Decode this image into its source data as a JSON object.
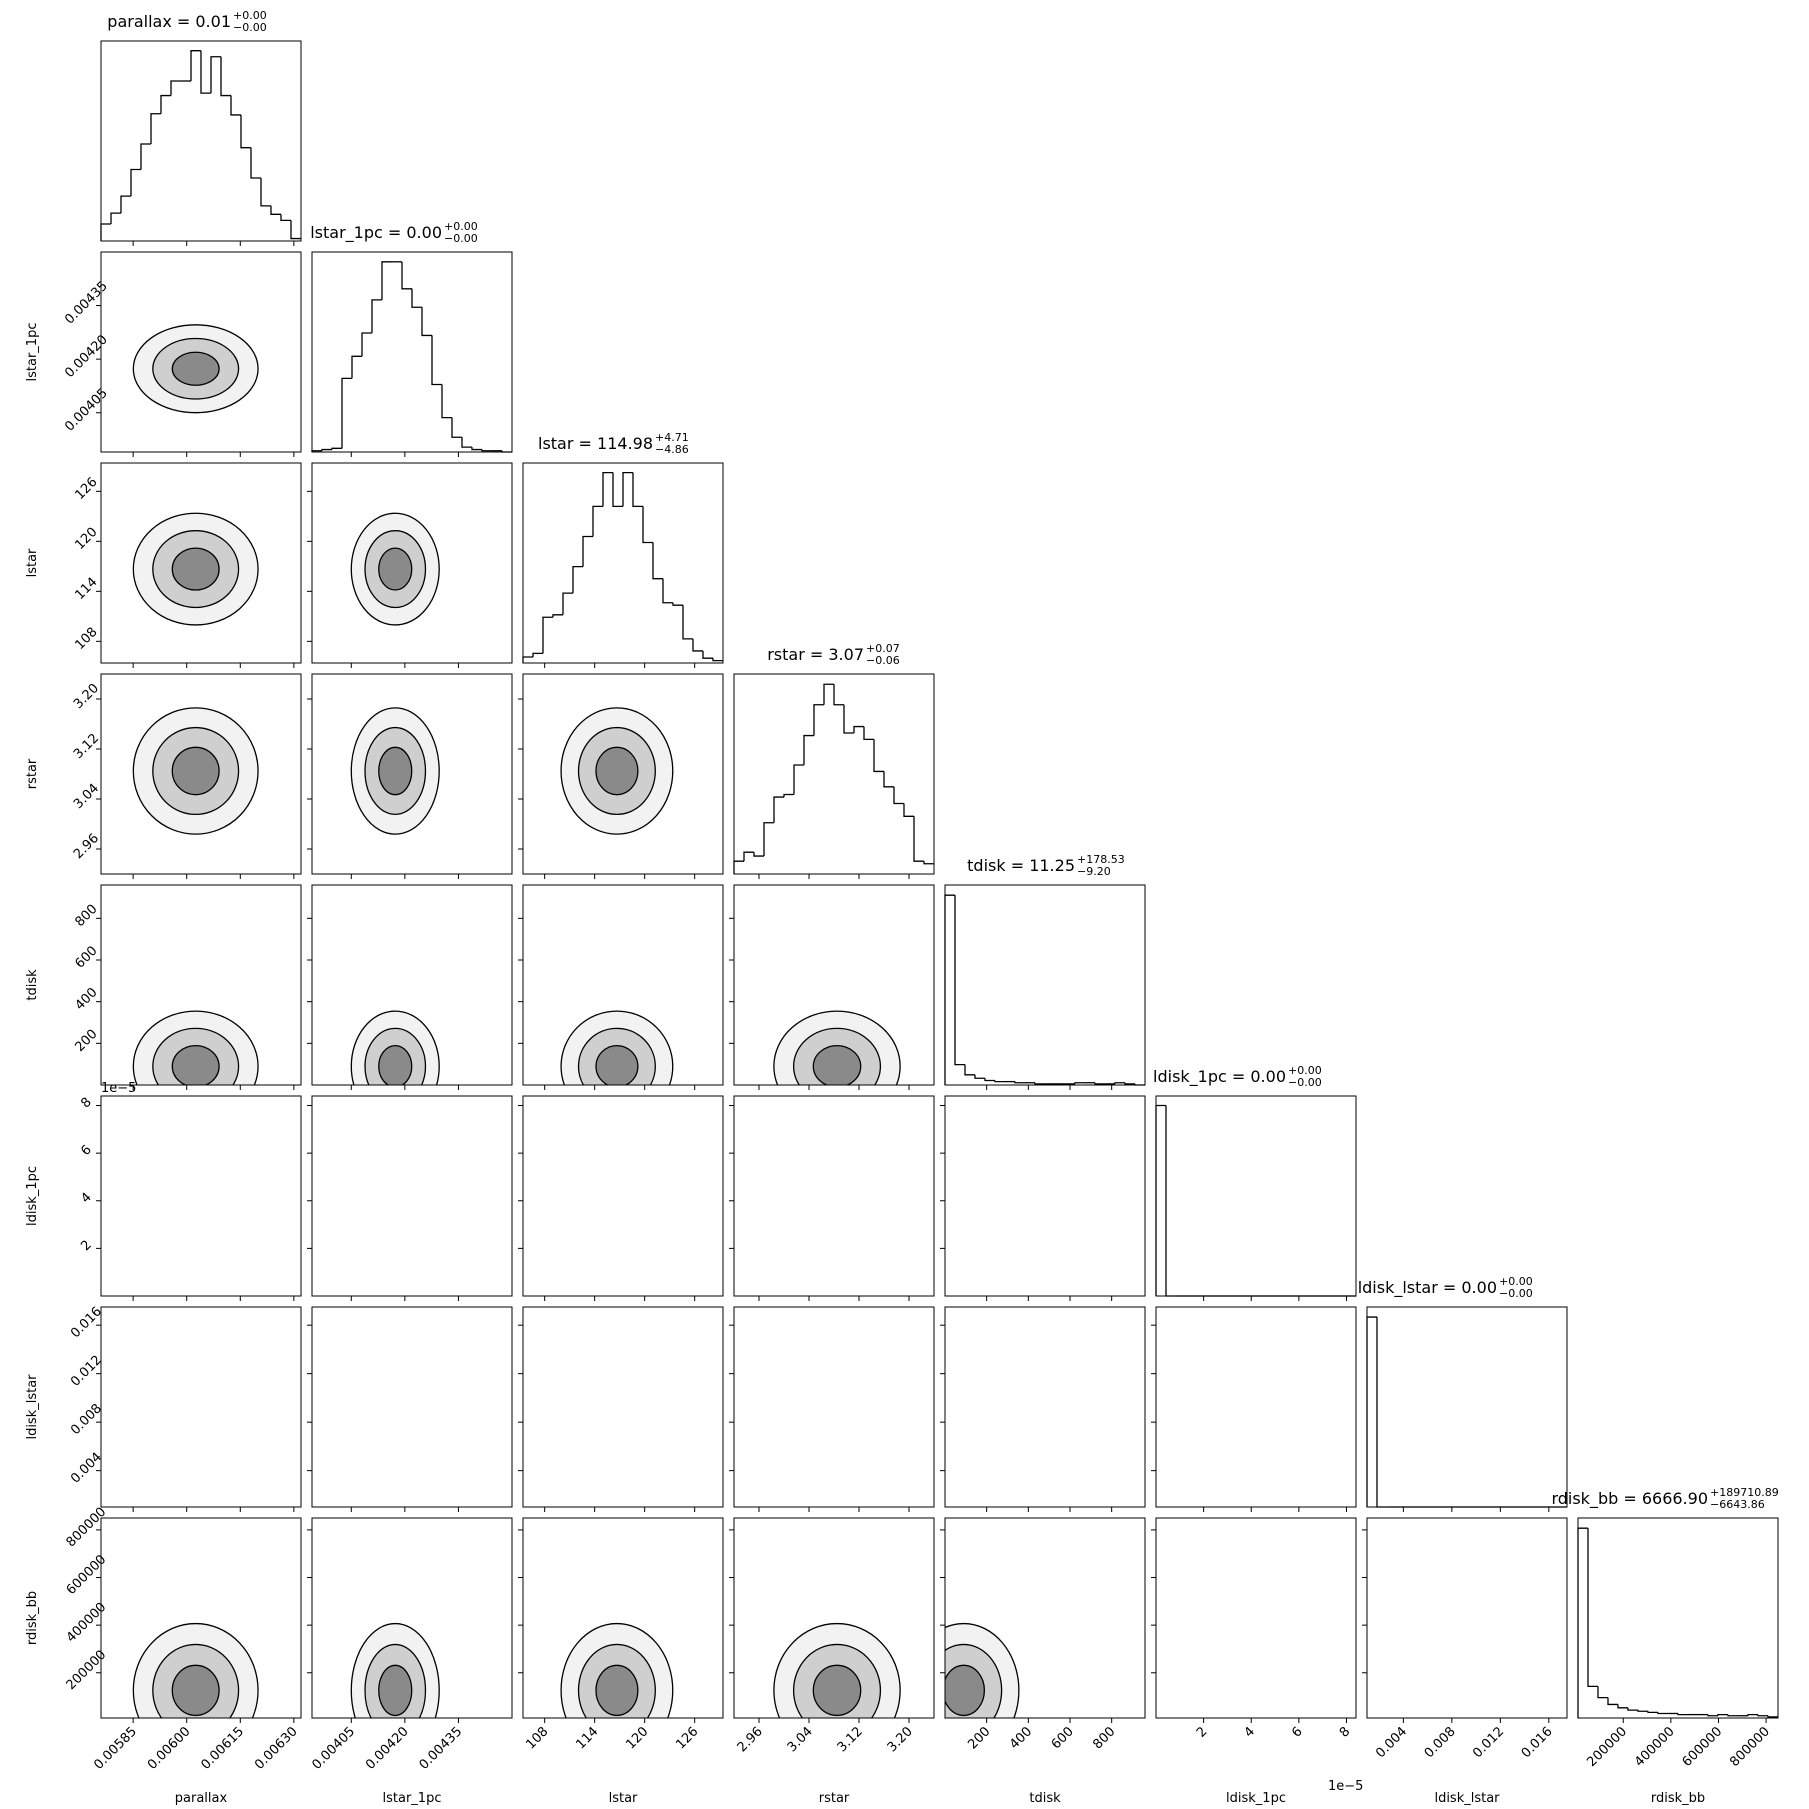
{
  "chart_data": [
    {
      "type": "histogram",
      "title": "parallax = 0.01",
      "title_plus": "+0.00",
      "title_minus": "−0.00",
      "xlabel": "parallax",
      "bins": [
        0.00576,
        0.005788,
        0.005816,
        0.005844,
        0.005872,
        0.0059,
        0.005928,
        0.005956,
        0.005984,
        0.006012,
        0.00604,
        0.006068,
        0.006096,
        0.006124,
        0.006152,
        0.00618,
        0.006208,
        0.006236,
        0.006264,
        0.006292,
        0.00632
      ],
      "counts": [
        14,
        23,
        37,
        59,
        80,
        105,
        120,
        132,
        132,
        157,
        122,
        152,
        120,
        104,
        77,
        52,
        29,
        22,
        17,
        2
      ],
      "xlim": [
        0.00576,
        0.00632
      ],
      "ylim": [
        0,
        165
      ],
      "xticks": [
        0.00585,
        {
          "value": 0.006,
          "label": "0.00600"
        },
        0.00615,
        {
          "value": 0.0063,
          "label": "0.00630"
        }
      ]
    },
    {
      "type": "histogram",
      "title": "lstar_1pc = 0.00",
      "title_plus": "+0.00",
      "title_minus": "−0.00",
      "xlabel": "lstar_1pc",
      "bins": [
        0.00394,
        0.003968,
        0.003996,
        0.004024,
        0.004052,
        0.00408,
        0.004108,
        0.004136,
        0.004164,
        0.004192,
        0.00422,
        0.004248,
        0.004276,
        0.004304,
        0.004332,
        0.00436,
        0.004388,
        0.004416,
        0.004444,
        0.004472,
        0.0045
      ],
      "counts": [
        1,
        2,
        3,
        60,
        78,
        97,
        124,
        155,
        155,
        133,
        118,
        95,
        55,
        28,
        12,
        4,
        2,
        1,
        1,
        0
      ],
      "xlim": [
        0.00394,
        0.0045
      ],
      "ylim": [
        0,
        163
      ],
      "xticks": [
        0.00405,
        {
          "value": 0.0042,
          "label": "0.00420"
        },
        0.00435
      ]
    },
    {
      "type": "histogram",
      "title": "lstar = 114.98",
      "title_plus": "+4.71",
      "title_minus": "−4.86",
      "xlabel": "lstar",
      "bins": [
        105.4,
        106.6,
        107.8,
        109,
        110.2,
        111.4,
        112.6,
        113.8,
        115,
        116.2,
        117.4,
        118.6,
        119.8,
        121,
        122.2,
        123.4,
        124.6,
        125.8,
        127,
        128.2,
        129.4
      ],
      "counts": [
        5,
        8,
        38,
        40,
        58,
        80,
        105,
        130,
        158,
        130,
        158,
        130,
        100,
        70,
        50,
        48,
        20,
        10,
        4,
        2
      ],
      "xlim": [
        105.4,
        129.4
      ],
      "ylim": [
        0,
        166
      ],
      "xticks": [
        108,
        114,
        120,
        126
      ]
    },
    {
      "type": "histogram",
      "title": "rstar = 3.07",
      "title_plus": "+0.07",
      "title_minus": "−0.06",
      "xlabel": "rstar",
      "bins": [
        2.92,
        2.936,
        2.952,
        2.968,
        2.984,
        3,
        3.016,
        3.032,
        3.048,
        3.064,
        3.08,
        3.096,
        3.112,
        3.128,
        3.144,
        3.16,
        3.176,
        3.192,
        3.208,
        3.224,
        3.24
      ],
      "counts": [
        10,
        17,
        14,
        40,
        60,
        62,
        85,
        108,
        132,
        148,
        132,
        110,
        115,
        105,
        80,
        68,
        55,
        45,
        10,
        8
      ],
      "xlim": [
        2.92,
        3.24
      ],
      "ylim": [
        0,
        156
      ],
      "xticks": [
        2.96,
        3.04,
        3.12,
        {
          "value": 3.2,
          "label": "3.20"
        }
      ]
    },
    {
      "type": "histogram",
      "title": "tdisk = 11.25",
      "title_plus": "+178.53",
      "title_minus": "−9.20",
      "xlabel": "tdisk",
      "bins": [
        0,
        48,
        96,
        144,
        192,
        240,
        288,
        336,
        384,
        432,
        480,
        528,
        576,
        624,
        672,
        720,
        768,
        816,
        864,
        912,
        960
      ],
      "counts": [
        168,
        18,
        9,
        6,
        4,
        3,
        3,
        2,
        2,
        1,
        1,
        1,
        1,
        2,
        2,
        1,
        1,
        2,
        1,
        0
      ],
      "xlim": [
        0,
        960
      ],
      "ylim": [
        0,
        177
      ],
      "xticks": [
        200,
        400,
        600,
        800
      ]
    },
    {
      "type": "histogram",
      "title": "ldisk_1pc = 0.00",
      "title_plus": "+0.00",
      "title_minus": "−0.00",
      "xlabel": "ldisk_1pc",
      "offset_label": "1e−5",
      "bins": [
        0,
        0.42,
        0.84,
        1.26,
        1.68,
        2.1,
        2.52,
        2.94,
        3.36,
        3.78,
        4.2,
        4.62,
        5.04,
        5.46,
        5.88,
        6.3,
        6.72,
        7.14,
        7.56,
        7.98,
        8.4
      ],
      "counts": [
        160,
        0,
        0,
        0,
        0,
        0,
        0,
        0,
        0,
        0,
        0,
        0,
        0,
        0,
        0,
        0,
        0,
        0,
        0,
        0
      ],
      "xlim": [
        0,
        8.4
      ],
      "ylim": [
        0,
        168
      ],
      "xticks": [
        2,
        4,
        6,
        8
      ]
    },
    {
      "type": "histogram",
      "title": "ldisk_lstar = 0.00",
      "title_plus": "+0.00",
      "title_minus": "−0.00",
      "xlabel": "ldisk_lstar",
      "bins": [
        0.001,
        0.001825,
        0.00265,
        0.003475,
        0.0043,
        0.005125,
        0.00595,
        0.006775,
        0.0076,
        0.008425,
        0.00925,
        0.010075,
        0.0109,
        0.011725,
        0.01255,
        0.013375,
        0.0142,
        0.015025,
        0.01585,
        0.016675,
        0.0175
      ],
      "counts": [
        170,
        0,
        0,
        0,
        0,
        0,
        0,
        0,
        0,
        0,
        0,
        0,
        0,
        0,
        0,
        0,
        0,
        0,
        0,
        0
      ],
      "xlim": [
        0.001,
        0.0175
      ],
      "ylim": [
        0,
        179
      ],
      "xticks": [
        0.004,
        0.008,
        0.012,
        0.016
      ]
    },
    {
      "type": "histogram",
      "title": "rdisk_bb = 6666.90",
      "title_plus": "+189710.89",
      "title_minus": "−6643.86",
      "xlabel": "rdisk_bb",
      "bins": [
        10000,
        52000,
        94000,
        136000,
        178000,
        220000,
        262000,
        304000,
        346000,
        388000,
        430000,
        472000,
        514000,
        556000,
        598000,
        640000,
        682000,
        724000,
        766000,
        808000,
        850000
      ],
      "counts": [
        168,
        28,
        18,
        12,
        9,
        7,
        6,
        5,
        4,
        4,
        3,
        3,
        3,
        2,
        3,
        2,
        2,
        3,
        2,
        1
      ],
      "xlim": [
        10000,
        850000
      ],
      "ylim": [
        0,
        177
      ],
      "xticks": [
        200000,
        400000,
        600000,
        800000
      ]
    }
  ]
}
